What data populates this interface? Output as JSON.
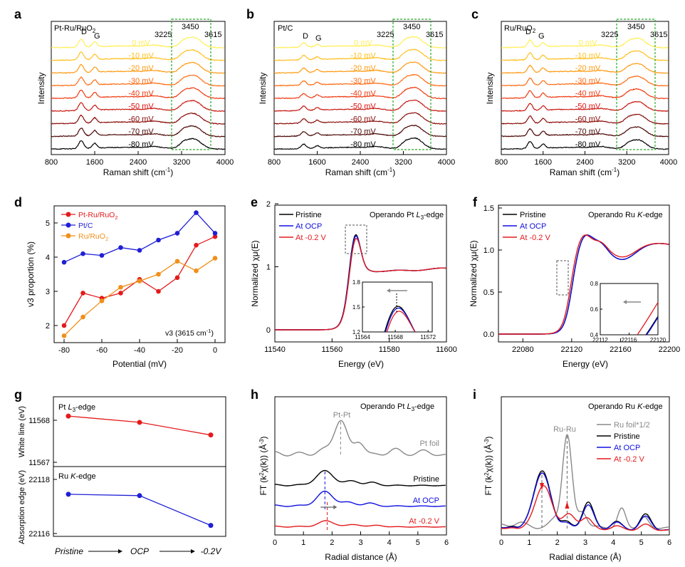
{
  "panels": {
    "a": {
      "letter": "a",
      "label": "Pt-Ru/RuO",
      "label_sub": "2",
      "xlabel": "Raman shift (cm",
      "xlabel_sup": "-1",
      "xlabel_end": ")",
      "ylabel": "Intensity",
      "xticks": [
        "800",
        "1600",
        "2400",
        "3200",
        "4000"
      ],
      "peak_d": "D",
      "peak_g": "G",
      "peak_labels": [
        "3225",
        "3450",
        "3615"
      ],
      "potentials": [
        "0 mV",
        "-10 mV",
        "-20 mV",
        "-30 mV",
        "-40 mV",
        "-50 mV",
        "-60 mV",
        "-70 mV",
        "-80 mV"
      ]
    },
    "b": {
      "letter": "b",
      "label": "Pt/C",
      "label_sub": "",
      "xlabel": "Raman shift (cm",
      "xlabel_sup": "-1",
      "xlabel_end": ")",
      "ylabel": "Intensity",
      "xticks": [
        "800",
        "1600",
        "2400",
        "3200",
        "4000"
      ],
      "peak_d": "D",
      "peak_g": "G",
      "peak_labels": [
        "3225",
        "3450",
        "3615"
      ],
      "potentials": [
        "0 mV",
        "-10 mV",
        "-20 mV",
        "-30 mV",
        "-40 mV",
        "-50 mV",
        "-60 mV",
        "-70 mV",
        "-80 mV"
      ]
    },
    "c": {
      "letter": "c",
      "label": "Ru/RuO",
      "label_sub": "2",
      "xlabel": "Raman shift (cm",
      "xlabel_sup": "-1",
      "xlabel_end": ")",
      "ylabel": "Intensity",
      "xticks": [
        "800",
        "1600",
        "2400",
        "3200",
        "4000"
      ],
      "peak_d": "D",
      "peak_g": "G",
      "peak_labels": [
        "3225",
        "3450",
        "3615"
      ],
      "potentials": [
        "0 mV",
        "-10 mV",
        "-20 mV",
        "-30 mV",
        "-40 mV",
        "-50 mV",
        "-60 mV",
        "-70 mV",
        "-80 mV"
      ]
    },
    "d": {
      "letter": "d",
      "xlabel": "Potential (mV)",
      "ylabel": "v3 proportion (%)",
      "annotation": "v3 (3615 cm",
      "annotation_sup": "-1",
      "annotation_end": ")",
      "xticks": [
        "-80",
        "-60",
        "-40",
        "-20",
        "0"
      ],
      "yticks": [
        "2",
        "3",
        "4",
        "5"
      ]
    },
    "e": {
      "letter": "e",
      "title": "Operando Pt ",
      "title_it": "L",
      "title_sub": "3",
      "title_end": "-edge",
      "xlabel": "Energy (eV)",
      "ylabel": "Normalized χμ(E)",
      "xticks": [
        "11540",
        "11560",
        "11580",
        "11600"
      ],
      "yticks": [
        "0",
        "1",
        "2"
      ],
      "inset_xticks": [
        "11564",
        "11568",
        "11572"
      ],
      "inset_yticks": [
        "1.2",
        "1.5",
        "1.8"
      ]
    },
    "f": {
      "letter": "f",
      "title": "Operando Ru ",
      "title_it": "K",
      "title_end": "-edge",
      "xlabel": "Energy (eV)",
      "ylabel": "Normalized χμ(E)",
      "xticks": [
        "22080",
        "22120",
        "22160",
        "22200"
      ],
      "yticks": [
        "0.0",
        "0.5",
        "1.0",
        "1.5"
      ],
      "inset_xticks": [
        "22112",
        "22116",
        "22120"
      ],
      "inset_yticks": [
        "0.4",
        "0.6",
        "0.8"
      ]
    },
    "g": {
      "letter": "g",
      "top_label": "Pt ",
      "top_label_it": "L",
      "top_label_sub": "3",
      "top_label_end": "-edge",
      "bottom_label": "Ru ",
      "bottom_label_it": "K",
      "bottom_label_end": "-edge",
      "ylabel_top": "White line (eV)",
      "ylabel_bottom": "Absorption edge (eV)",
      "top_yticks": [
        "11568",
        "11567"
      ],
      "bottom_yticks": [
        "22118",
        "22116"
      ],
      "xcats": [
        "Pristine",
        "OCP",
        "-0.2V"
      ]
    },
    "h": {
      "letter": "h",
      "title": "Operando Pt ",
      "title_it": "L",
      "title_sub": "3",
      "title_end": "-edge",
      "xlabel": "Radial distance (Å)",
      "ylabel": "FT (k",
      "ylabel_sup1": "2",
      "ylabel_mid": "χ(k)) (Å",
      "ylabel_sup2": "-3",
      "ylabel_end": ")",
      "peak_label": "Pt-Pt",
      "trace_labels": [
        "Pt foil",
        "Pristine",
        "At OCP",
        "At -0.2 V"
      ],
      "xticks": [
        "0",
        "1",
        "2",
        "3",
        "4",
        "5",
        "6"
      ]
    },
    "i": {
      "letter": "i",
      "title": "Operando Ru ",
      "title_it": "K",
      "title_end": "-edge",
      "xlabel": "Radial distance (Å)",
      "ylabel": "FT (k",
      "ylabel_sup1": "2",
      "ylabel_mid": "χ(k)) (Å",
      "ylabel_sup2": "-3",
      "ylabel_end": ")",
      "peak_label": "Ru-Ru",
      "xticks": [
        "0",
        "1",
        "2",
        "3",
        "4",
        "5",
        "6"
      ]
    }
  },
  "legend_xas": [
    "Pristine",
    "At OCP",
    "At -0.2 V"
  ],
  "legend_i": [
    "Ru foil*1/2",
    "Pristine",
    "At OCP",
    "At -0.2 V"
  ],
  "colors": {
    "potential_ramp": [
      "#ffee55",
      "#ffc020",
      "#ff9a10",
      "#ff6a10",
      "#f03a10",
      "#c81810",
      "#8a0c08",
      "#4a0604",
      "#000000"
    ],
    "potential_label_ramp": [
      "#ffee55",
      "#ffc020",
      "#ff9a10",
      "#ff6a10",
      "#f03a10",
      "#e01010",
      "#8a0c08",
      "#4a0604",
      "#000000"
    ],
    "ptru": "#e41a1c",
    "ptc": "#1f1fd6",
    "ru": "#f0901a",
    "pristine": "#000000",
    "ocp": "#1010e0",
    "neg": "#e41a1c",
    "foil": "#888888",
    "box": "#29a829"
  },
  "chart_data": [
    {
      "type": "line",
      "title": "Pt-Ru/RuO2",
      "xlabel": "Raman shift (cm-1)",
      "ylabel": "Intensity",
      "xlim": [
        800,
        4000
      ],
      "series_names": [
        "0 mV",
        "-10 mV",
        "-20 mV",
        "-30 mV",
        "-40 mV",
        "-50 mV",
        "-60 mV",
        "-70 mV",
        "-80 mV"
      ],
      "peaks_cm-1": [
        1350,
        1600,
        3225,
        3450,
        3615
      ]
    },
    {
      "type": "line",
      "title": "Pt/C",
      "xlabel": "Raman shift (cm-1)",
      "ylabel": "Intensity",
      "xlim": [
        800,
        4000
      ],
      "series_names": [
        "0 mV",
        "-10 mV",
        "-20 mV",
        "-30 mV",
        "-40 mV",
        "-50 mV",
        "-60 mV",
        "-70 mV",
        "-80 mV"
      ],
      "peaks_cm-1": [
        1350,
        1600,
        3225,
        3450,
        3615
      ]
    },
    {
      "type": "line",
      "title": "Ru/RuO2",
      "xlabel": "Raman shift (cm-1)",
      "ylabel": "Intensity",
      "xlim": [
        800,
        4000
      ],
      "series_names": [
        "0 mV",
        "-10 mV",
        "-20 mV",
        "-30 mV",
        "-40 mV",
        "-50 mV",
        "-60 mV",
        "-70 mV",
        "-80 mV"
      ],
      "peaks_cm-1": [
        1350,
        1600,
        3225,
        3450,
        3615
      ]
    },
    {
      "type": "line",
      "xlabel": "Potential (mV)",
      "ylabel": "v3 proportion (%)",
      "xlim": [
        -85,
        2
      ],
      "ylim": [
        1.5,
        5.5
      ],
      "x": [
        -80,
        -70,
        -60,
        -50,
        -40,
        -30,
        -20,
        -10,
        0
      ],
      "series": [
        {
          "name": "Pt-Ru/RuO2",
          "values": [
            2.0,
            2.95,
            2.8,
            2.95,
            3.35,
            3.0,
            3.4,
            4.35,
            4.6
          ]
        },
        {
          "name": "Pt/C",
          "values": [
            3.85,
            4.1,
            4.05,
            4.28,
            4.2,
            4.5,
            4.7,
            5.3,
            4.7
          ]
        },
        {
          "name": "Ru/RuO2",
          "values": [
            1.7,
            2.25,
            2.72,
            3.12,
            3.3,
            3.5,
            3.88,
            3.6,
            3.97
          ]
        }
      ]
    },
    {
      "type": "line",
      "xlabel": "Energy (eV)",
      "ylabel": "Normalized χμ(E)",
      "xlim": [
        11540,
        11600
      ],
      "ylim": [
        -0.1,
        2.0
      ],
      "series_names": [
        "Pristine",
        "At OCP",
        "At -0.2 V"
      ],
      "white_line_peak": {
        "x": 11568,
        "y": [
          1.6,
          1.58,
          1.53
        ]
      }
    },
    {
      "type": "line",
      "xlabel": "Energy (eV)",
      "ylabel": "Normalized χμ(E)",
      "xlim": [
        22060,
        22200
      ],
      "ylim": [
        -0.05,
        1.55
      ],
      "series_names": [
        "Pristine",
        "At OCP",
        "At -0.2 V"
      ],
      "edge_peak": {
        "x": 22130,
        "y": 1.16
      }
    },
    {
      "type": "line",
      "x": [
        "Pristine",
        "OCP",
        "-0.2V"
      ],
      "series": [
        {
          "name": "Pt L3-edge white line (eV)",
          "values": [
            11568.1,
            11567.95,
            11567.65
          ]
        },
        {
          "name": "Ru K-edge absorption edge (eV)",
          "values": [
            22117.45,
            22117.4,
            22116.3
          ]
        }
      ]
    },
    {
      "type": "line",
      "xlabel": "Radial distance (Å)",
      "ylabel": "FT (k2χ(k)) (Å-3)",
      "xlim": [
        0,
        6
      ],
      "series_names": [
        "Pt foil",
        "Pristine",
        "At OCP",
        "At -0.2 V"
      ],
      "peak_positions_A": {
        "Pt foil": 2.3,
        "Pristine": 1.75,
        "At OCP": 1.75,
        "At -0.2 V": 1.8
      }
    },
    {
      "type": "line",
      "xlabel": "Radial distance (Å)",
      "ylabel": "FT (k2χ(k)) (Å-3)",
      "xlim": [
        0,
        6
      ],
      "series_names": [
        "Ru foil*1/2",
        "Pristine",
        "At OCP",
        "At -0.2 V"
      ],
      "peak_positions_A": {
        "Ru foil*1/2": 2.35,
        "Pristine": 1.45,
        "At OCP": 1.45,
        "At -0.2 V": 1.5
      }
    }
  ]
}
